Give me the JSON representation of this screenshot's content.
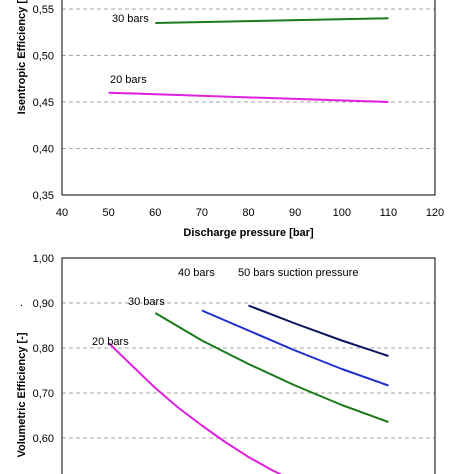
{
  "chart_data": [
    {
      "type": "line",
      "title": "",
      "xlabel": "Discharge pressure [bar]",
      "ylabel": "Isentropic Efficiency [",
      "xlim": [
        40,
        120
      ],
      "ylim": [
        0.35,
        0.55
      ],
      "x_ticks": [
        "40",
        "50",
        "60",
        "70",
        "80",
        "90",
        "100",
        "110",
        "120"
      ],
      "y_ticks": [
        "0,35",
        "0,40",
        "0,45",
        "0,50",
        "0,55"
      ],
      "grid": "horizontal dashed",
      "series": [
        {
          "name": "30 bars",
          "color": "#1a7a1a",
          "x": [
            60,
            110
          ],
          "y": [
            0.535,
            0.54
          ]
        },
        {
          "name": "20 bars",
          "color": "#e020e0",
          "x": [
            50,
            110
          ],
          "y": [
            0.46,
            0.45
          ]
        }
      ]
    },
    {
      "type": "line",
      "title": "",
      "xlabel": "",
      "ylabel": "Volumetric Efficiency [-]",
      "xlim": [
        40,
        120
      ],
      "ylim": [
        0.55,
        1.0
      ],
      "y_ticks": [
        "0,60",
        "0,70",
        "0,80",
        "0,90",
        "1,00"
      ],
      "grid": "horizontal dashed",
      "annotations": [
        ".",
        "50 bars suction pressure"
      ],
      "series": [
        {
          "name": "20 bars",
          "color": "#e020e0",
          "x": [
            50,
            55,
            60,
            65,
            70,
            75,
            80,
            85,
            90
          ],
          "y": [
            0.83,
            0.785,
            0.74,
            0.7,
            0.665,
            0.632,
            0.602,
            0.576,
            0.553
          ]
        },
        {
          "name": "30 bars",
          "color": "#1a7a1a",
          "x": [
            60,
            70,
            80,
            90,
            100,
            110
          ],
          "y": [
            0.89,
            0.835,
            0.788,
            0.745,
            0.706,
            0.672
          ]
        },
        {
          "name": "40 bars",
          "color": "#1f2ecc",
          "x": [
            70,
            80,
            90,
            100,
            110
          ],
          "y": [
            0.895,
            0.855,
            0.815,
            0.778,
            0.745
          ]
        },
        {
          "name": "50 bars",
          "color": "#0a1560",
          "x": [
            80,
            90,
            100,
            110
          ],
          "y": [
            0.905,
            0.869,
            0.835,
            0.804
          ]
        }
      ]
    }
  ]
}
